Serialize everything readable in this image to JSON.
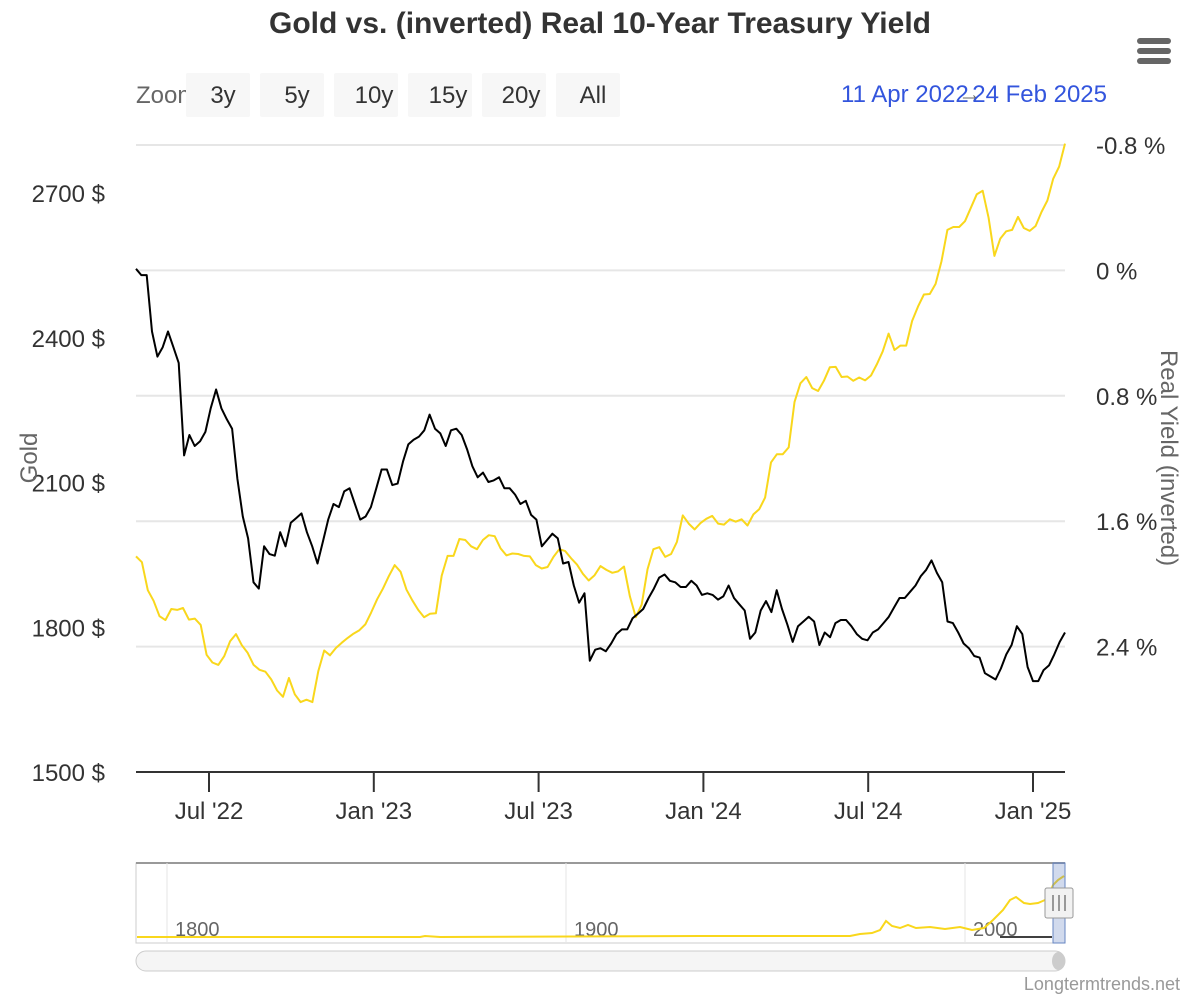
{
  "chart_data": {
    "type": "line",
    "title": "Gold vs. (inverted) Real 10-Year Treasury Yield",
    "zoom": {
      "label": "Zoom",
      "buttons": [
        "3y",
        "5y",
        "10y",
        "15y",
        "20y",
        "All"
      ]
    },
    "date_range": {
      "from": "11 Apr 2022",
      "to": "24 Feb 2025",
      "separator": "→"
    },
    "x_tick_labels": [
      "Jul '22",
      "Jan '23",
      "Jul '23",
      "Jan '24",
      "Jul '24",
      "Jan '25"
    ],
    "y_left": {
      "title": "Gold",
      "range": [
        1500,
        2800
      ],
      "tick_values": [
        1500,
        1800,
        2100,
        2400,
        2700
      ],
      "tick_labels": [
        "1500 $",
        "1800 $",
        "2100 $",
        "2400 $",
        "2700 $"
      ]
    },
    "y_right": {
      "title": "Real Yield (inverted)",
      "inverted": true,
      "range": [
        -0.8,
        3.2
      ],
      "tick_values": [
        -0.8,
        0,
        0.8,
        1.6,
        2.4
      ],
      "tick_labels": [
        "-0.8 %",
        "0 %",
        "0.8 %",
        "1.6 %",
        "2.4 %"
      ]
    },
    "series": [
      {
        "name": "Gold",
        "axis": "left",
        "color": "#f9d71c",
        "values": [
          1947,
          1935,
          1877,
          1855,
          1823,
          1815,
          1838,
          1836,
          1840,
          1816,
          1818,
          1805,
          1743,
          1727,
          1722,
          1740,
          1771,
          1786,
          1763,
          1747,
          1722,
          1712,
          1708,
          1692,
          1669,
          1656,
          1695,
          1661,
          1645,
          1650,
          1645,
          1709,
          1752,
          1742,
          1757,
          1768,
          1778,
          1787,
          1794,
          1806,
          1831,
          1858,
          1880,
          1906,
          1929,
          1915,
          1878,
          1856,
          1836,
          1821,
          1828,
          1829,
          1907,
          1948,
          1948,
          1983,
          1981,
          1968,
          1962,
          1981,
          1991,
          1989,
          1964,
          1949,
          1953,
          1952,
          1948,
          1947,
          1929,
          1922,
          1925,
          1946,
          1962,
          1958,
          1943,
          1930,
          1911,
          1897,
          1908,
          1927,
          1919,
          1913,
          1916,
          1926,
          1864,
          1821,
          1847,
          1920,
          1962,
          1966,
          1946,
          1952,
          1977,
          2032,
          2015,
          2003,
          2016,
          2025,
          2031,
          2015,
          2013,
          2024,
          2019,
          2024,
          2011,
          2034,
          2045,
          2069,
          2142,
          2159,
          2159,
          2173,
          2267,
          2306,
          2319,
          2296,
          2290,
          2311,
          2339,
          2340,
          2319,
          2320,
          2311,
          2318,
          2312,
          2322,
          2345,
          2372,
          2409,
          2375,
          2384,
          2384,
          2435,
          2465,
          2490,
          2491,
          2512,
          2559,
          2624,
          2630,
          2630,
          2642,
          2670,
          2698,
          2705,
          2649,
          2570,
          2606,
          2621,
          2624,
          2651,
          2628,
          2622,
          2632,
          2661,
          2685,
          2730,
          2755,
          2803
        ]
      },
      {
        "name": "Real Yield (inverted)",
        "axis": "right",
        "color": "#000000",
        "values": [
          -0.01,
          0.03,
          0.03,
          0.39,
          0.55,
          0.49,
          0.39,
          0.49,
          0.59,
          1.18,
          1.05,
          1.12,
          1.09,
          1.03,
          0.88,
          0.76,
          0.88,
          0.95,
          1.01,
          1.33,
          1.57,
          1.71,
          1.99,
          2.03,
          1.76,
          1.81,
          1.82,
          1.67,
          1.76,
          1.61,
          1.58,
          1.55,
          1.67,
          1.76,
          1.87,
          1.73,
          1.59,
          1.49,
          1.51,
          1.41,
          1.39,
          1.49,
          1.59,
          1.57,
          1.51,
          1.39,
          1.27,
          1.27,
          1.37,
          1.36,
          1.22,
          1.11,
          1.08,
          1.06,
          1.02,
          0.92,
          1.01,
          1.04,
          1.12,
          1.02,
          1.01,
          1.05,
          1.14,
          1.25,
          1.32,
          1.29,
          1.35,
          1.34,
          1.32,
          1.39,
          1.39,
          1.43,
          1.49,
          1.47,
          1.56,
          1.59,
          1.76,
          1.72,
          1.68,
          1.71,
          1.87,
          1.86,
          2.01,
          2.12,
          2.06,
          2.49,
          2.42,
          2.41,
          2.43,
          2.38,
          2.32,
          2.29,
          2.29,
          2.22,
          2.19,
          2.16,
          2.09,
          2.03,
          1.96,
          1.94,
          1.98,
          1.99,
          2.02,
          2.02,
          1.98,
          2.01,
          2.07,
          2.06,
          2.07,
          2.1,
          2.08,
          2.01,
          2.09,
          2.13,
          2.17,
          2.35,
          2.31,
          2.17,
          2.11,
          2.18,
          2.04,
          2.16,
          2.26,
          2.37,
          2.27,
          2.24,
          2.21,
          2.24,
          2.39,
          2.31,
          2.34,
          2.25,
          2.23,
          2.23,
          2.27,
          2.32,
          2.35,
          2.36,
          2.31,
          2.29,
          2.25,
          2.21,
          2.15,
          2.09,
          2.09,
          2.05,
          2.01,
          1.95,
          1.91,
          1.85,
          1.93,
          1.99,
          2.24,
          2.25,
          2.31,
          2.38,
          2.41,
          2.46,
          2.47,
          2.57,
          2.59,
          2.61,
          2.54,
          2.45,
          2.39,
          2.27,
          2.32,
          2.53,
          2.62,
          2.62,
          2.55,
          2.52,
          2.45,
          2.37,
          2.31
        ]
      }
    ],
    "navigator": {
      "year_labels": [
        "1800",
        "1900",
        "2000"
      ]
    },
    "credits": "Longtermtrends.net"
  }
}
